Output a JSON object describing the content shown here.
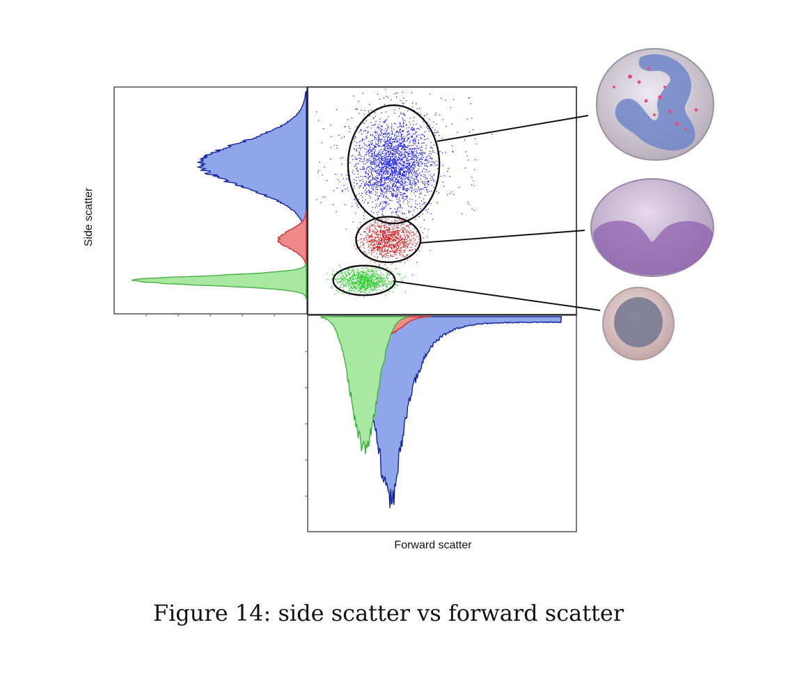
{
  "caption": "Figure 14: side scatter vs forward scatter",
  "chart_data": {
    "type": "scatter",
    "xlabel": "Forward scatter",
    "ylabel": "Side scatter",
    "xlim": [
      0,
      100
    ],
    "ylim": [
      0,
      100
    ],
    "grid": false,
    "series": [
      {
        "color": "#1a1aff",
        "center": [
          32,
          66
        ],
        "spread": [
          7,
          10
        ],
        "gate": {
          "rx": 17,
          "ry": 26
        }
      },
      {
        "color": "#cc2222",
        "center": [
          30,
          33
        ],
        "spread": [
          5,
          4
        ],
        "gate": {
          "rx": 12,
          "ry": 10
        }
      },
      {
        "color": "#22cc22",
        "center": [
          21,
          15
        ],
        "spread": [
          5,
          2.5
        ],
        "gate": {
          "rx": 11.5,
          "ry": 6.5
        }
      }
    ],
    "side_histograms": {
      "orientation": "horizontal",
      "fills": [
        "#8fa6ea",
        "#ee8a8a",
        "#a8e8a0"
      ],
      "strokes": [
        "#1020a0",
        "#d03030",
        "#40b040"
      ]
    },
    "forward_histograms": {
      "orientation": "vertical",
      "fills": [
        "#8fa6ea",
        "#ee8a8a",
        "#a8e8a0"
      ],
      "strokes": [
        "#1020a0",
        "#d03030",
        "#40b040"
      ]
    },
    "cell_illustrations": [
      "neutrophil-cell",
      "monocyte-cell",
      "lymphocyte-cell"
    ]
  }
}
